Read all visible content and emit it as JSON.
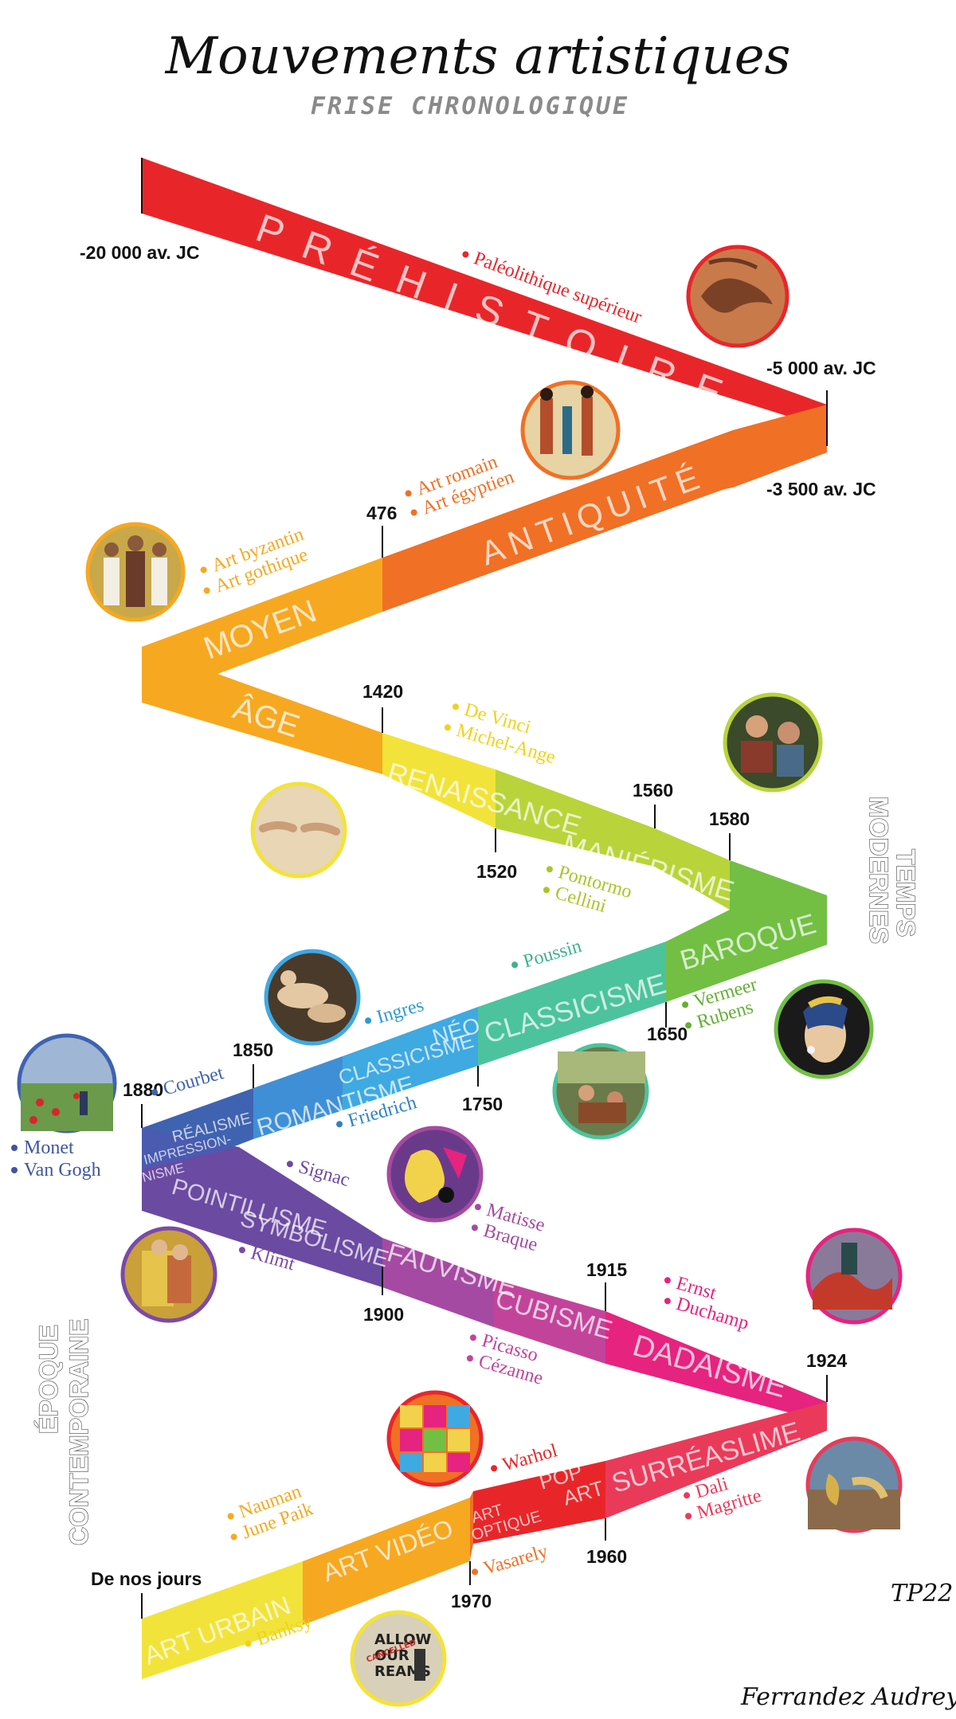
{
  "header": {
    "title": "Mouvements artistiques",
    "subtitle": "FRISE CHRONOLOGIQUE"
  },
  "colors": {
    "red": "#e8262a",
    "orange": "#f07025",
    "amber": "#f6a821",
    "yellow": "#f2e33a",
    "lime": "#b8d43a",
    "green": "#72bf44",
    "teal": "#4cc39c",
    "sky": "#3fa9e2",
    "blue": "#3f63b0",
    "violet": "#6b4aa2",
    "magenta": "#b5449b",
    "pink": "#e6237f",
    "crimson": "#ea3a5a"
  },
  "periods": [
    {
      "label": "PRÉHISTOIRE",
      "color": "#e8262a"
    },
    {
      "label": "ANTIQUITÉ",
      "color": "#f07025"
    },
    {
      "label": "MOYEN",
      "color": "#f6a821"
    },
    {
      "label": "ÂGE",
      "color": "#f6a821"
    },
    {
      "label": "RENAISSANCE",
      "color": "#f2e33a"
    },
    {
      "label": "MANIÉRISME",
      "color": "#b8d43a"
    },
    {
      "label": "BAROQUE",
      "color": "#72bf44"
    },
    {
      "label": "CLASSICISME",
      "color": "#4cc39c"
    },
    {
      "label": "NÉO",
      "color": "#3fa9e2"
    },
    {
      "label": "CLASSICISME",
      "color": "#3fa9e2"
    },
    {
      "label": "ROMANTISME",
      "color": "#3f8fd6"
    },
    {
      "label": "RÉALISME",
      "color": "#3f63b0"
    },
    {
      "label": "IMPRESSION-",
      "color": "#3f63b0"
    },
    {
      "label": "NISME",
      "color": "#3f63b0"
    },
    {
      "label": "POINTILLISME",
      "color": "#6b4aa2"
    },
    {
      "label": "SYMBOLISME",
      "color": "#7a4aa8"
    },
    {
      "label": "FAUVISME",
      "color": "#a54aa2"
    },
    {
      "label": "CUBISME",
      "color": "#c2449a"
    },
    {
      "label": "DADAÏSME",
      "color": "#e6237f"
    },
    {
      "label": "SURRÉASLIME",
      "color": "#ea3a5a"
    },
    {
      "label": "POP",
      "color": "#e8262a"
    },
    {
      "label": "ART",
      "color": "#e8262a"
    },
    {
      "label": "ART",
      "color": "#f07025"
    },
    {
      "label": "OPTIQUE",
      "color": "#f07025"
    },
    {
      "label": "ART VIDÉO",
      "color": "#f6a821"
    },
    {
      "label": "ART URBAIN",
      "color": "#f2e33a"
    }
  ],
  "dates": [
    "-20 000 av. JC",
    "-5 000 av. JC",
    "-3 500 av. JC",
    "476",
    "1420",
    "1520",
    "1560",
    "1580",
    "1650",
    "1750",
    "1850",
    "1880",
    "1900",
    "1915",
    "1924",
    "1960",
    "1970",
    "De nos jours"
  ],
  "notes": [
    {
      "text": "Paléolithique supérieur",
      "color": "#e8262a"
    },
    {
      "text": "Art romain",
      "color": "#f07025"
    },
    {
      "text": "Art égyptien",
      "color": "#f07025"
    },
    {
      "text": "Art byzantin",
      "color": "#f6a821"
    },
    {
      "text": "Art gothique",
      "color": "#f6a821"
    },
    {
      "text": "De Vinci",
      "color": "#f2d21a"
    },
    {
      "text": "Michel-Ange",
      "color": "#f2d21a"
    },
    {
      "text": "Pontormo",
      "color": "#a9c52a"
    },
    {
      "text": "Cellini",
      "color": "#a9c52a"
    },
    {
      "text": "Vermeer",
      "color": "#62b034"
    },
    {
      "text": "Rubens",
      "color": "#62b034"
    },
    {
      "text": "Poussin",
      "color": "#3cb38c"
    },
    {
      "text": "Ingres",
      "color": "#2f99d2"
    },
    {
      "text": "Friedrich",
      "color": "#3080c6"
    },
    {
      "text": "Courbet",
      "color": "#3f63b0"
    },
    {
      "text": "Monet",
      "color": "#3f55a0"
    },
    {
      "text": "Van Gogh",
      "color": "#3f55a0"
    },
    {
      "text": "Signac",
      "color": "#6b4aa2"
    },
    {
      "text": "Klimt",
      "color": "#7a4aa8"
    },
    {
      "text": "Matisse",
      "color": "#a54aa2"
    },
    {
      "text": "Braque",
      "color": "#a54aa2"
    },
    {
      "text": "Picasso",
      "color": "#c2449a"
    },
    {
      "text": "Cézanne",
      "color": "#c2449a"
    },
    {
      "text": "Ernst",
      "color": "#e6237f"
    },
    {
      "text": "Duchamp",
      "color": "#e6237f"
    },
    {
      "text": "Dali",
      "color": "#ea3a5a"
    },
    {
      "text": "Magritte",
      "color": "#ea3a5a"
    },
    {
      "text": "Warhol",
      "color": "#e8262a"
    },
    {
      "text": "Vasarely",
      "color": "#f07025"
    },
    {
      "text": "Nauman",
      "color": "#f6a821"
    },
    {
      "text": "June Paik",
      "color": "#f6a821"
    },
    {
      "text": "Banksy",
      "color": "#f2d21a"
    }
  ],
  "side_labels": {
    "temps_1": "TEMPS",
    "temps_2": "MODERNES",
    "epoque_1": "ÉPOQUE",
    "epoque_2": "CONTEMPORAINE"
  },
  "artworks": [
    {
      "subject": "cave-painting",
      "ring": "#e8262a"
    },
    {
      "subject": "egyptian-fresco",
      "ring": "#f07025"
    },
    {
      "subject": "byzantine-mosaic",
      "ring": "#f6a821"
    },
    {
      "subject": "michelangelo-creation",
      "ring": "#f2e33a"
    },
    {
      "subject": "mannerist-painting",
      "ring": "#b8d43a"
    },
    {
      "subject": "girl-with-pearl-earring",
      "ring": "#72bf44"
    },
    {
      "subject": "poussin-landscape",
      "ring": "#4cc39c"
    },
    {
      "subject": "ingres-bath",
      "ring": "#3fa9e2"
    },
    {
      "subject": "monet-poppies",
      "ring": "#3f63b0"
    },
    {
      "subject": "matisse-cutout",
      "ring": "#a54aa2"
    },
    {
      "subject": "klimt-kiss",
      "ring": "#7a4aa8"
    },
    {
      "subject": "ernst-landscape",
      "ring": "#e6237f"
    },
    {
      "subject": "dali-clocks",
      "ring": "#ea3a5a"
    },
    {
      "subject": "warhol-marilyn",
      "ring": "#e8262a"
    },
    {
      "subject": "banksy-stencil",
      "ring": "#f2e33a"
    }
  ],
  "banksy_text": {
    "line1": "ALLOW",
    "line2": "OUR",
    "line3": "REAMS",
    "stamp": "CANCELLED"
  },
  "signature": {
    "code": "TP22",
    "author": "Ferrandez Audrey"
  }
}
